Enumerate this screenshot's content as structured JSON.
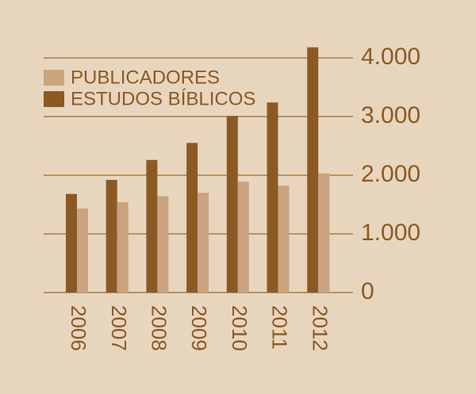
{
  "chart_data": {
    "type": "bar",
    "categories": [
      "2006",
      "2007",
      "2008",
      "2009",
      "2010",
      "2011",
      "2012"
    ],
    "series": [
      {
        "name": "PUBLICADORES",
        "color": "#c9a47e",
        "values": [
          1430,
          1540,
          1640,
          1700,
          1890,
          1820,
          2030
        ]
      },
      {
        "name": "ESTUDOS BÍBLICOS",
        "color": "#8b5a24",
        "values": [
          1680,
          1920,
          2260,
          2550,
          3010,
          3240,
          4180
        ]
      }
    ],
    "ylim": [
      0,
      4000
    ],
    "yticks": [
      0,
      {
        "value": 1000,
        "label": "1.000"
      },
      {
        "value": 2000,
        "label": "2.000"
      },
      {
        "value": 3000,
        "label": "3.000"
      },
      {
        "value": 4000,
        "label": "4.000"
      }
    ],
    "grid": true
  }
}
